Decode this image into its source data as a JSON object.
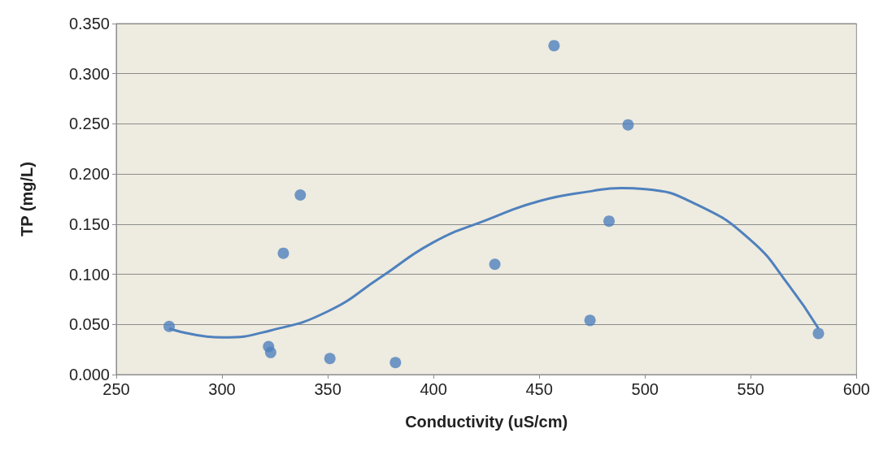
{
  "chart_data": {
    "type": "scatter",
    "xlabel": "Conductivity (uS/cm)",
    "ylabel": "TP (mg/L)",
    "xlim": [
      250,
      600
    ],
    "xticks": [
      250,
      300,
      350,
      400,
      450,
      500,
      550,
      600
    ],
    "ylim": [
      0,
      0.35
    ],
    "yticks": [
      {
        "value": 0,
        "label": "0.000"
      },
      {
        "value": 0.05,
        "label": "0.050"
      },
      {
        "value": 0.1,
        "label": "0.100"
      },
      {
        "value": 0.15,
        "label": "0.150"
      },
      {
        "value": 0.2,
        "label": "0.200"
      },
      {
        "value": 0.25,
        "label": "0.250"
      },
      {
        "value": 0.3,
        "label": "0.300"
      },
      {
        "value": 0.35,
        "label": "0.350"
      }
    ],
    "grid": "y",
    "marker": "circle",
    "series": [
      {
        "color": "#4f81bd",
        "x": [
          275,
          322,
          323,
          329,
          337,
          351,
          382,
          429,
          457,
          474,
          483,
          492,
          582
        ],
        "values": [
          0.048,
          0.028,
          0.022,
          0.121,
          0.179,
          0.016,
          0.012,
          0.11,
          0.328,
          0.054,
          0.153,
          0.249,
          0.041
        ]
      },
      {
        "type": "line",
        "color": "#4f81bd",
        "marker": "none",
        "x": [
          275,
          300,
          323,
          350,
          375,
          400,
          425,
          450,
          475,
          489,
          500,
          525,
          550,
          568,
          582
        ],
        "values": [
          0.046,
          0.037,
          0.044,
          0.063,
          0.097,
          0.132,
          0.154,
          0.173,
          0.183,
          0.186,
          0.185,
          0.169,
          0.134,
          0.089,
          0.046
        ]
      }
    ]
  }
}
